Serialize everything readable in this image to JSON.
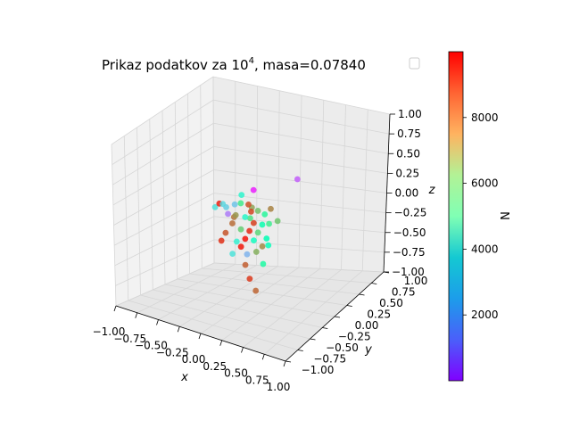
{
  "chart_data": {
    "type": "scatter",
    "title": {
      "prefix": "Prikaz podatkov za 10",
      "exponent": "4",
      "suffix": ", masa=0.07840"
    },
    "xlabel": "x",
    "ylabel": "y",
    "zlabel": "z",
    "xlim": [
      -1.0,
      1.0
    ],
    "ylim": [
      -1.0,
      1.0
    ],
    "zlim": [
      -1.0,
      1.0
    ],
    "x_ticks": [
      "−1.00",
      "−0.75",
      "−0.50",
      "−0.25",
      "0.00",
      "0.25",
      "0.50",
      "0.75",
      "1.00"
    ],
    "y_ticks": [
      "−1.00",
      "−0.75",
      "−0.50",
      "−0.25",
      "0.00",
      "0.25",
      "0.50",
      "0.75",
      "1.00"
    ],
    "z_ticks": [
      "−1.00",
      "−0.75",
      "−0.50",
      "−0.25",
      "0.00",
      "0.25",
      "0.50",
      "0.75",
      "1.00"
    ],
    "grid": true,
    "colorbar": {
      "label": "N",
      "cmap": "rainbow",
      "range": [
        0,
        10000
      ],
      "ticks": [
        "2000",
        "4000",
        "6000",
        "8000"
      ],
      "tick_values": [
        2000,
        4000,
        6000,
        8000
      ]
    },
    "legend": "top-right, empty",
    "points": [
      {
        "x": 0.05,
        "y": 0.0,
        "z": 0.28,
        "n": 400
      },
      {
        "x": 0.5,
        "y": 0.1,
        "z": 0.45,
        "n": 1200
      },
      {
        "x": -0.25,
        "y": -0.1,
        "z": 0.1,
        "n": 3200
      },
      {
        "x": -0.2,
        "y": 0.05,
        "z": 0.05,
        "n": 2800
      },
      {
        "x": -0.1,
        "y": 0.0,
        "z": 0.1,
        "n": 6300
      },
      {
        "x": 0.0,
        "y": 0.05,
        "z": 0.05,
        "n": 7800
      },
      {
        "x": 0.05,
        "y": -0.05,
        "z": 0.05,
        "n": 9100
      },
      {
        "x": 0.1,
        "y": 0.0,
        "z": 0.05,
        "n": 7300
      },
      {
        "x": 0.15,
        "y": 0.05,
        "z": 0.0,
        "n": 5800
      },
      {
        "x": -0.3,
        "y": 0.05,
        "z": 0.0,
        "n": 3000
      },
      {
        "x": -0.35,
        "y": 0.0,
        "z": 0.05,
        "n": 9600
      },
      {
        "x": -0.25,
        "y": 0.0,
        "z": -0.05,
        "n": 1600
      },
      {
        "x": -0.15,
        "y": -0.05,
        "z": -0.05,
        "n": 8500
      },
      {
        "x": -0.05,
        "y": 0.0,
        "z": -0.05,
        "n": 4200
      },
      {
        "x": 0.05,
        "y": 0.0,
        "z": -0.1,
        "n": 9200
      },
      {
        "x": 0.15,
        "y": 0.0,
        "z": -0.1,
        "n": 5200
      },
      {
        "x": 0.2,
        "y": 0.05,
        "z": -0.1,
        "n": 6200
      },
      {
        "x": -0.2,
        "y": 0.0,
        "z": -0.15,
        "n": 8600
      },
      {
        "x": -0.1,
        "y": 0.0,
        "z": -0.2,
        "n": 7000
      },
      {
        "x": 0.0,
        "y": 0.0,
        "z": -0.2,
        "n": 9500
      },
      {
        "x": 0.1,
        "y": 0.0,
        "z": -0.2,
        "n": 6800
      },
      {
        "x": 0.2,
        "y": 0.0,
        "z": -0.25,
        "n": 5000
      },
      {
        "x": -0.25,
        "y": -0.05,
        "z": -0.25,
        "n": 8900
      },
      {
        "x": -0.05,
        "y": 0.0,
        "z": -0.3,
        "n": 9800
      },
      {
        "x": 0.05,
        "y": 0.0,
        "z": -0.3,
        "n": 4600
      },
      {
        "x": -0.15,
        "y": 0.0,
        "z": -0.35,
        "n": 3900
      },
      {
        "x": 0.15,
        "y": 0.0,
        "z": -0.35,
        "n": 8200
      },
      {
        "x": -0.1,
        "y": 0.0,
        "z": -0.4,
        "n": 9700
      },
      {
        "x": 0.0,
        "y": -0.05,
        "z": -0.45,
        "n": 2500
      },
      {
        "x": 0.05,
        "y": 0.05,
        "z": -0.45,
        "n": 7600
      },
      {
        "x": -0.2,
        "y": 0.0,
        "z": -0.5,
        "n": 3500
      },
      {
        "x": -0.05,
        "y": 0.0,
        "z": -0.6,
        "n": 8800
      },
      {
        "x": 0.0,
        "y": 0.0,
        "z": -0.75,
        "n": 9300
      },
      {
        "x": 0.1,
        "y": -0.05,
        "z": -0.85,
        "n": 8700
      },
      {
        "x": -0.4,
        "y": 0.0,
        "z": 0.0,
        "n": 3400
      },
      {
        "x": 0.25,
        "y": 0.0,
        "z": 0.1,
        "n": 8300
      },
      {
        "x": 0.25,
        "y": -0.05,
        "z": -0.3,
        "n": 4800
      },
      {
        "x": -0.05,
        "y": 0.1,
        "z": -0.1,
        "n": 6500
      },
      {
        "x": 0.05,
        "y": -0.1,
        "z": 0.15,
        "n": 9000
      },
      {
        "x": -0.15,
        "y": 0.1,
        "z": 0.15,
        "n": 4100
      },
      {
        "x": 0.3,
        "y": 0.05,
        "z": -0.05,
        "n": 7200
      },
      {
        "x": -0.3,
        "y": -0.05,
        "z": -0.35,
        "n": 9400
      },
      {
        "x": 0.1,
        "y": 0.1,
        "z": -0.6,
        "n": 5600
      },
      {
        "x": -0.1,
        "y": -0.1,
        "z": 0.0,
        "n": 8000
      }
    ]
  }
}
